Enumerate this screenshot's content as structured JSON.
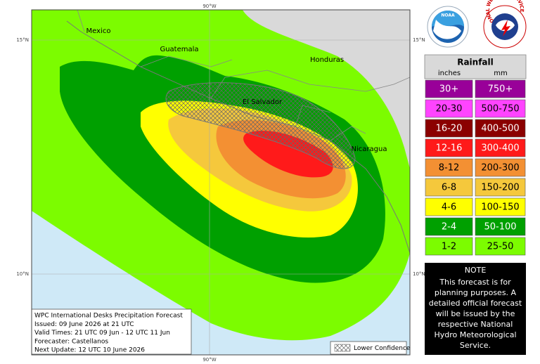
{
  "map": {
    "graticule": {
      "lon_top": "90°W",
      "lon_bottom": "90°W",
      "lat15_left": "15°N",
      "lat15_right": "15°N",
      "lat10_left": "10°N",
      "lat10_right": "10°N"
    },
    "places": [
      "Mexico",
      "Guatemala",
      "Honduras",
      "El Salvador",
      "Nicaragua"
    ],
    "info_box": [
      "WPC International Desks Precipitation Forecast",
      "Issued: 09 June 2026 at 21 UTC",
      "Valid Times: 21 UTC 09 Jun - 12 UTC 11 Jun",
      "Forecaster: Castellanos",
      "Next Update: 12 UTC 10 June 2026"
    ],
    "confidence_legend": "Lower Confidence"
  },
  "logos": {
    "noaa": "NOAA",
    "nws": "NATIONAL WEATHER SERVICE"
  },
  "legend": {
    "title": "Rainfall",
    "unit_inches": "inches",
    "unit_mm": "mm",
    "rows": [
      {
        "inches": "30+",
        "mm": "750+",
        "color": "#990099"
      },
      {
        "inches": "20-30",
        "mm": "500-750",
        "color": "#ff44ff"
      },
      {
        "inches": "16-20",
        "mm": "400-500",
        "color": "#8b0000"
      },
      {
        "inches": "12-16",
        "mm": "300-400",
        "color": "#ff1a1a"
      },
      {
        "inches": "8-12",
        "mm": "200-300",
        "color": "#f39033"
      },
      {
        "inches": "6-8",
        "mm": "150-200",
        "color": "#f5c83c"
      },
      {
        "inches": "4-6",
        "mm": "100-150",
        "color": "#ffff00"
      },
      {
        "inches": "2-4",
        "mm": "50-100",
        "color": "#00a000"
      },
      {
        "inches": "1-2",
        "mm": "25-50",
        "color": "#7cfc00"
      }
    ]
  },
  "note": {
    "title": "NOTE",
    "lines": [
      "This forecast is for",
      "planning purposes. A",
      "detailed official forecast",
      "will be issued by the",
      "respective National",
      "Hydro Meteorological",
      "Service."
    ]
  }
}
